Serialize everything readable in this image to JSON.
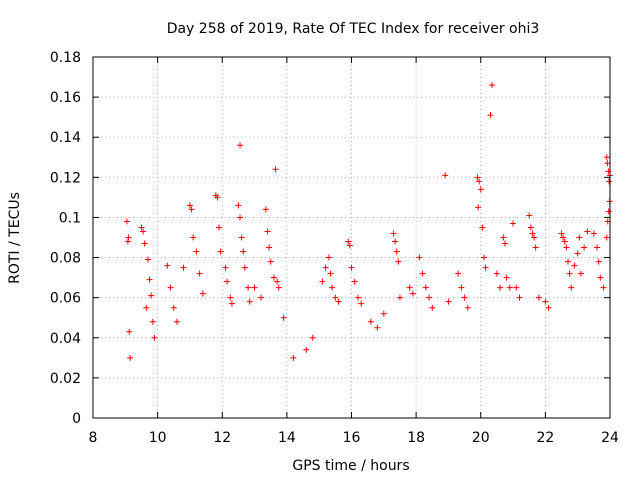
{
  "chart_data": {
    "type": "scatter",
    "title": "Day 258 of 2019, Rate Of TEC Index for receiver ohi3",
    "xlabel": "GPS time / hours",
    "ylabel": "ROTI / TECUs",
    "xlim": [
      8,
      24
    ],
    "ylim": [
      0,
      0.18
    ],
    "xticks": [
      "8",
      "10",
      "12",
      "14",
      "16",
      "18",
      "20",
      "22",
      "24"
    ],
    "yticks": [
      "0",
      "0.02",
      "0.04",
      "0.06",
      "0.08",
      "0.1",
      "0.12",
      "0.14",
      "0.16",
      "0.18"
    ],
    "grid": true,
    "marker": "+",
    "series_color": "#ff0000",
    "points": [
      [
        9.05,
        0.098
      ],
      [
        9.1,
        0.09
      ],
      [
        9.08,
        0.088
      ],
      [
        9.12,
        0.043
      ],
      [
        9.15,
        0.03
      ],
      [
        9.5,
        0.095
      ],
      [
        9.55,
        0.093
      ],
      [
        9.6,
        0.087
      ],
      [
        9.7,
        0.079
      ],
      [
        9.75,
        0.069
      ],
      [
        9.8,
        0.061
      ],
      [
        9.65,
        0.055
      ],
      [
        9.85,
        0.048
      ],
      [
        9.9,
        0.04
      ],
      [
        10.3,
        0.076
      ],
      [
        10.4,
        0.065
      ],
      [
        10.5,
        0.055
      ],
      [
        10.6,
        0.048
      ],
      [
        10.8,
        0.075
      ],
      [
        11.0,
        0.106
      ],
      [
        11.05,
        0.104
      ],
      [
        11.1,
        0.09
      ],
      [
        11.2,
        0.083
      ],
      [
        11.3,
        0.072
      ],
      [
        11.4,
        0.062
      ],
      [
        11.8,
        0.111
      ],
      [
        11.85,
        0.11
      ],
      [
        11.9,
        0.095
      ],
      [
        11.95,
        0.083
      ],
      [
        12.1,
        0.075
      ],
      [
        12.15,
        0.068
      ],
      [
        12.25,
        0.06
      ],
      [
        12.3,
        0.057
      ],
      [
        12.55,
        0.136
      ],
      [
        12.5,
        0.106
      ],
      [
        12.55,
        0.1
      ],
      [
        12.6,
        0.09
      ],
      [
        12.65,
        0.083
      ],
      [
        12.7,
        0.075
      ],
      [
        12.8,
        0.065
      ],
      [
        12.85,
        0.058
      ],
      [
        13.0,
        0.065
      ],
      [
        13.2,
        0.06
      ],
      [
        13.35,
        0.104
      ],
      [
        13.4,
        0.093
      ],
      [
        13.45,
        0.085
      ],
      [
        13.5,
        0.078
      ],
      [
        13.6,
        0.07
      ],
      [
        13.65,
        0.124
      ],
      [
        13.7,
        0.068
      ],
      [
        13.75,
        0.065
      ],
      [
        13.9,
        0.05
      ],
      [
        14.2,
        0.03
      ],
      [
        14.6,
        0.034
      ],
      [
        14.8,
        0.04
      ],
      [
        15.1,
        0.068
      ],
      [
        15.2,
        0.075
      ],
      [
        15.3,
        0.08
      ],
      [
        15.35,
        0.072
      ],
      [
        15.4,
        0.065
      ],
      [
        15.5,
        0.06
      ],
      [
        15.6,
        0.058
      ],
      [
        15.9,
        0.088
      ],
      [
        15.95,
        0.086
      ],
      [
        16.0,
        0.075
      ],
      [
        16.1,
        0.068
      ],
      [
        16.2,
        0.06
      ],
      [
        16.3,
        0.057
      ],
      [
        16.6,
        0.048
      ],
      [
        16.8,
        0.045
      ],
      [
        17.0,
        0.052
      ],
      [
        17.3,
        0.092
      ],
      [
        17.35,
        0.088
      ],
      [
        17.4,
        0.083
      ],
      [
        17.45,
        0.078
      ],
      [
        17.5,
        0.06
      ],
      [
        17.8,
        0.065
      ],
      [
        17.9,
        0.062
      ],
      [
        18.1,
        0.08
      ],
      [
        18.2,
        0.072
      ],
      [
        18.3,
        0.065
      ],
      [
        18.4,
        0.06
      ],
      [
        18.5,
        0.055
      ],
      [
        18.9,
        0.121
      ],
      [
        19.0,
        0.058
      ],
      [
        19.3,
        0.072
      ],
      [
        19.4,
        0.065
      ],
      [
        19.5,
        0.06
      ],
      [
        19.6,
        0.055
      ],
      [
        19.9,
        0.12
      ],
      [
        19.95,
        0.118
      ],
      [
        20.0,
        0.114
      ],
      [
        19.92,
        0.105
      ],
      [
        20.05,
        0.095
      ],
      [
        20.1,
        0.08
      ],
      [
        20.15,
        0.075
      ],
      [
        20.35,
        0.166
      ],
      [
        20.3,
        0.151
      ],
      [
        20.5,
        0.072
      ],
      [
        20.6,
        0.065
      ],
      [
        20.7,
        0.09
      ],
      [
        20.75,
        0.087
      ],
      [
        20.8,
        0.07
      ],
      [
        20.9,
        0.065
      ],
      [
        21.0,
        0.097
      ],
      [
        21.1,
        0.065
      ],
      [
        21.2,
        0.06
      ],
      [
        21.5,
        0.101
      ],
      [
        21.55,
        0.095
      ],
      [
        21.6,
        0.092
      ],
      [
        21.65,
        0.09
      ],
      [
        21.7,
        0.085
      ],
      [
        21.8,
        0.06
      ],
      [
        22.0,
        0.058
      ],
      [
        22.1,
        0.055
      ],
      [
        22.5,
        0.092
      ],
      [
        22.55,
        0.09
      ],
      [
        22.6,
        0.088
      ],
      [
        22.65,
        0.085
      ],
      [
        22.7,
        0.078
      ],
      [
        22.75,
        0.072
      ],
      [
        22.8,
        0.065
      ],
      [
        22.9,
        0.076
      ],
      [
        23.0,
        0.082
      ],
      [
        23.05,
        0.09
      ],
      [
        23.1,
        0.072
      ],
      [
        23.2,
        0.085
      ],
      [
        23.3,
        0.093
      ],
      [
        23.5,
        0.092
      ],
      [
        23.6,
        0.085
      ],
      [
        23.65,
        0.078
      ],
      [
        23.7,
        0.07
      ],
      [
        23.8,
        0.065
      ],
      [
        23.9,
        0.13
      ],
      [
        23.92,
        0.127
      ],
      [
        23.95,
        0.123
      ],
      [
        24.0,
        0.121
      ],
      [
        23.97,
        0.118
      ],
      [
        23.99,
        0.108
      ],
      [
        23.96,
        0.103
      ],
      [
        23.93,
        0.098
      ],
      [
        23.9,
        0.09
      ]
    ]
  }
}
